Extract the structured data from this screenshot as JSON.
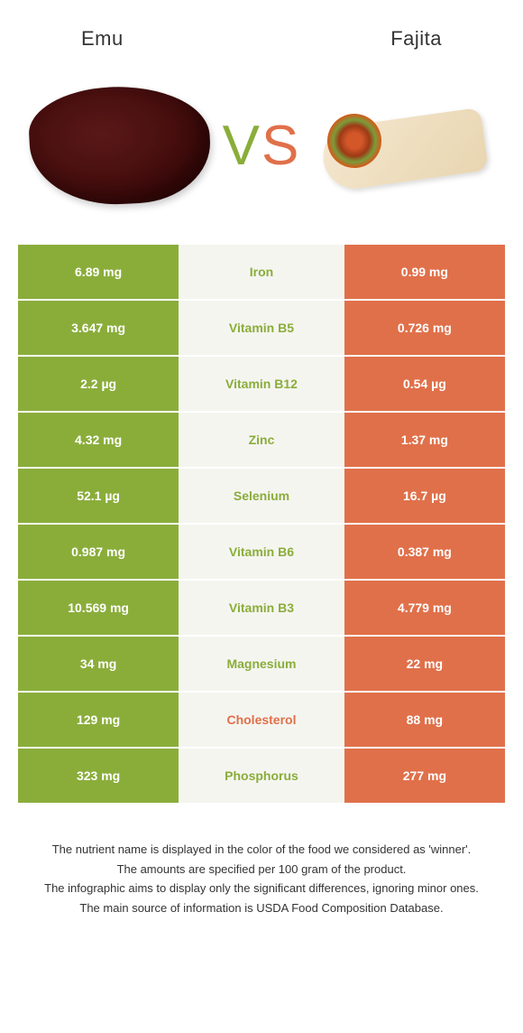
{
  "header": {
    "left_title": "Emu",
    "right_title": "Fajita",
    "vs_v": "V",
    "vs_s": "S"
  },
  "colors": {
    "left_bg": "#8aad3a",
    "right_bg": "#e0704a",
    "mid_bg": "#f5f5f0",
    "winner_left": "#8aad3a",
    "winner_right": "#e0704a"
  },
  "table": {
    "rows": [
      {
        "left": "6.89 mg",
        "label": "Iron",
        "right": "0.99 mg",
        "winner": "left"
      },
      {
        "left": "3.647 mg",
        "label": "Vitamin B5",
        "right": "0.726 mg",
        "winner": "left"
      },
      {
        "left": "2.2 µg",
        "label": "Vitamin B12",
        "right": "0.54 µg",
        "winner": "left"
      },
      {
        "left": "4.32 mg",
        "label": "Zinc",
        "right": "1.37 mg",
        "winner": "left"
      },
      {
        "left": "52.1 µg",
        "label": "Selenium",
        "right": "16.7 µg",
        "winner": "left"
      },
      {
        "left": "0.987 mg",
        "label": "Vitamin B6",
        "right": "0.387 mg",
        "winner": "left"
      },
      {
        "left": "10.569 mg",
        "label": "Vitamin B3",
        "right": "4.779 mg",
        "winner": "left"
      },
      {
        "left": "34 mg",
        "label": "Magnesium",
        "right": "22 mg",
        "winner": "left"
      },
      {
        "left": "129 mg",
        "label": "Cholesterol",
        "right": "88 mg",
        "winner": "right"
      },
      {
        "left": "323 mg",
        "label": "Phosphorus",
        "right": "277 mg",
        "winner": "left"
      }
    ]
  },
  "footer": {
    "line1": "The nutrient name is displayed in the color of the food we considered as 'winner'.",
    "line2": "The amounts are specified per 100 gram of the product.",
    "line3": "The infographic aims to display only the significant differences, ignoring minor ones.",
    "line4": "The main source of information is USDA Food Composition Database."
  }
}
